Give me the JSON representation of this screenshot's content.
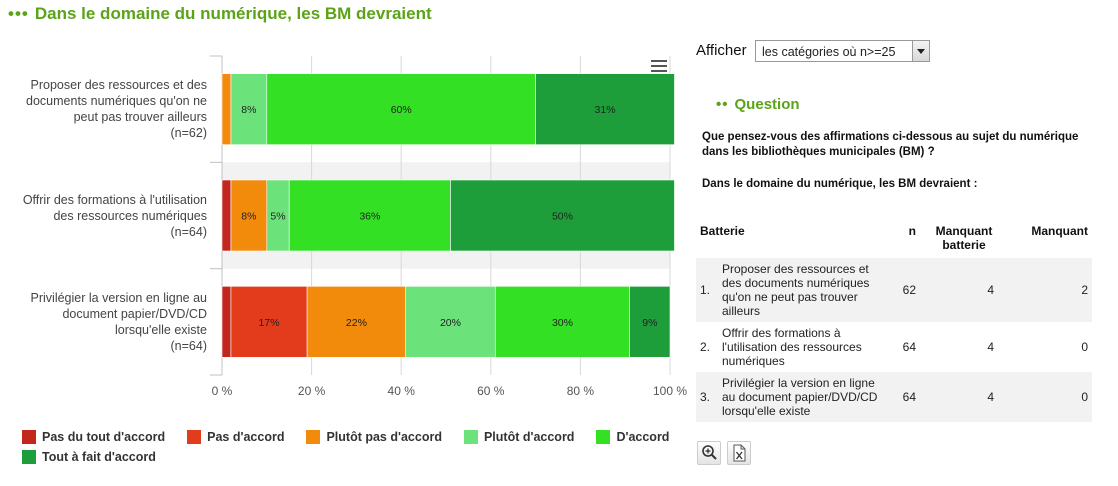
{
  "header": {
    "dots": "•••",
    "title": "Dans le domaine du numérique, les BM devraient"
  },
  "chart_data": {
    "type": "bar",
    "orientation": "horizontal",
    "stacked": true,
    "categories": [
      [
        "Proposer des ressources et des",
        "documents numériques qu'on ne",
        "peut pas trouver ailleurs",
        "(n=62)"
      ],
      [
        "Offrir des formations à l'utilisation",
        "des ressources numériques",
        "(n=64)"
      ],
      [
        "Privilégier la version en ligne au",
        "document papier/DVD/CD",
        "lorsqu'elle existe",
        "(n=64)"
      ]
    ],
    "series": [
      {
        "name": "Pas du tout d'accord",
        "color": "#c1271c",
        "values": [
          0,
          2,
          2
        ]
      },
      {
        "name": "Pas d'accord",
        "color": "#e33c1c",
        "values": [
          0,
          0,
          17
        ]
      },
      {
        "name": "Plutôt pas d'accord",
        "color": "#f28a0c",
        "values": [
          2,
          8,
          22
        ]
      },
      {
        "name": "Plutôt d'accord",
        "color": "#6ce37a",
        "values": [
          8,
          5,
          20
        ]
      },
      {
        "name": "D'accord",
        "color": "#34e024",
        "values": [
          60,
          36,
          30
        ]
      },
      {
        "name": "Tout à fait d'accord",
        "color": "#1e9e3a",
        "values": [
          31,
          50,
          9
        ]
      }
    ],
    "data_labels": [
      [
        "",
        "",
        "",
        "8%",
        "60%",
        "31%"
      ],
      [
        "",
        "",
        "8%",
        "5%",
        "36%",
        "50%"
      ],
      [
        "",
        "17%",
        "22%",
        "20%",
        "30%",
        "9%"
      ]
    ],
    "xlim": [
      0,
      100
    ],
    "xticks": [
      "0 %",
      "20 %",
      "40 %",
      "60 %",
      "80 %",
      "100 %"
    ],
    "grid": true,
    "legend_position": "bottom"
  },
  "controls": {
    "afficher_label": "Afficher",
    "select_value": "les catégories où n>=25"
  },
  "question": {
    "dots": "••",
    "title": "Question",
    "text": "Que pensez-vous des affirmations ci-dessous au sujet du numérique dans les bibliothèques municipales (BM) ?",
    "subtext": "Dans le domaine du numérique, les BM devraient :"
  },
  "table": {
    "headers": [
      "Batterie",
      "n",
      "Manquant batterie",
      "Manquant"
    ],
    "rows": [
      {
        "num": "1.",
        "label": "Proposer des ressources et des documents numériques qu'on ne peut pas trouver ailleurs",
        "n": "62",
        "mb": "4",
        "m": "2"
      },
      {
        "num": "2.",
        "label": "Offrir des formations à l'utilisation des ressources numériques",
        "n": "64",
        "mb": "4",
        "m": "0"
      },
      {
        "num": "3.",
        "label": "Privilégier la version en ligne au document papier/DVD/CD lorsqu'elle existe",
        "n": "64",
        "mb": "4",
        "m": "0"
      }
    ]
  },
  "icons": {
    "zoom": "zoom-in-icon",
    "excel": "excel-export-icon"
  }
}
